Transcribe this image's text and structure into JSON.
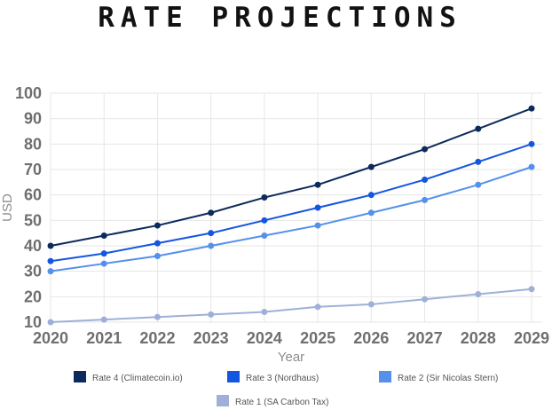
{
  "title": "RATE PROJECTIONS",
  "chart_data": {
    "type": "line",
    "title": "RATE PROJECTIONS",
    "xlabel": "Year",
    "ylabel": "USD",
    "x": [
      "2020",
      "2021",
      "2022",
      "2023",
      "2024",
      "2025",
      "2026",
      "2027",
      "2028",
      "2029"
    ],
    "ylim": [
      10,
      100
    ],
    "yticks": [
      10,
      20,
      30,
      40,
      50,
      60,
      70,
      80,
      90,
      100
    ],
    "grid": true,
    "legend_position": "bottom",
    "series": [
      {
        "name": "Rate 4 (Climatecoin.io)",
        "color": "#0c2a5b",
        "values": [
          40,
          44,
          48,
          53,
          59,
          64,
          71,
          78,
          86,
          94
        ]
      },
      {
        "name": "Rate 3 (Nordhaus)",
        "color": "#1456e0",
        "values": [
          34,
          37,
          41,
          45,
          50,
          55,
          60,
          66,
          73,
          80
        ]
      },
      {
        "name": "Rate 2 (Sir Nicolas Stern)",
        "color": "#5590ea",
        "values": [
          30,
          33,
          36,
          40,
          44,
          48,
          53,
          58,
          64,
          71
        ]
      },
      {
        "name": "Rate 1 (SA Carbon Tax)",
        "color": "#9fb0d8",
        "values": [
          10,
          11,
          12,
          13,
          14,
          16,
          17,
          19,
          21,
          23
        ]
      }
    ]
  }
}
